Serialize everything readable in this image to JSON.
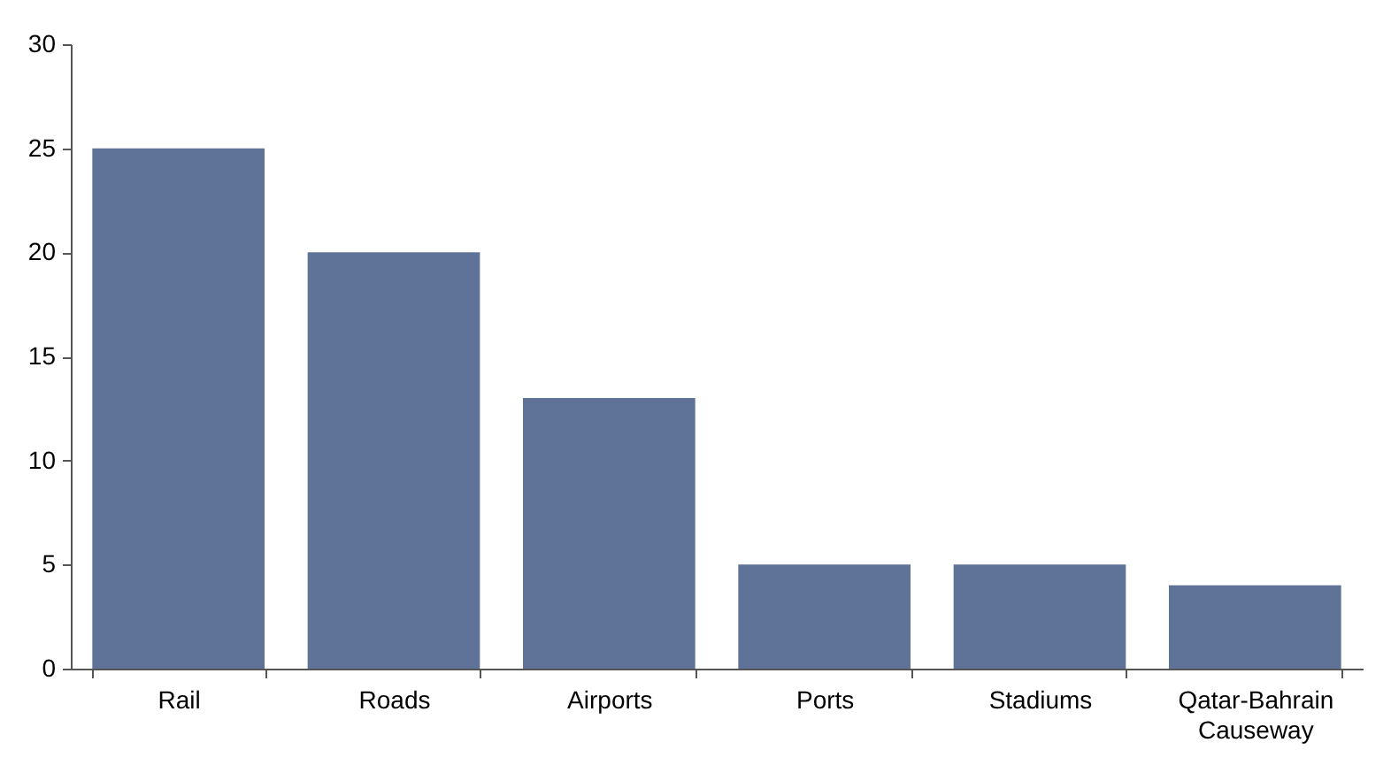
{
  "chart_data": {
    "type": "bar",
    "categories": [
      "Rail",
      "Roads",
      "Airports",
      "Ports",
      "Stadiums",
      "Qatar-Bahrain Causeway"
    ],
    "values": [
      25,
      20,
      13,
      5,
      5,
      4
    ],
    "color": "#5f7398",
    "ylim": [
      0,
      30
    ],
    "yticks": [
      0,
      5,
      10,
      15,
      20,
      25,
      30
    ],
    "grid": false
  }
}
